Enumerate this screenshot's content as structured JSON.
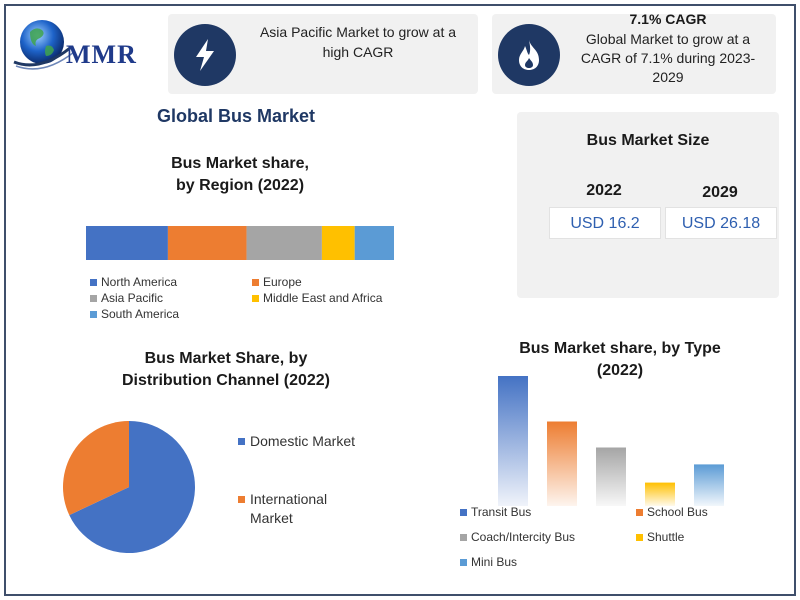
{
  "logo": {
    "text": "MMR"
  },
  "highlights": [
    {
      "icon": "lightning-icon",
      "text": "Asia Pacific Market to grow at a high CAGR"
    },
    {
      "icon": "flame-icon",
      "title": "7.1% CAGR",
      "text": "Global Market to grow at a CAGR of 7.1% during 2023-2029"
    }
  ],
  "main_title": "Global Bus Market",
  "market_size": {
    "title": "Bus Market Size",
    "items": [
      {
        "year": "2022",
        "value": "USD 16.2"
      },
      {
        "year": "2029",
        "value": "USD 26.18"
      }
    ]
  },
  "region_chart_title_line1": "Bus Market share,",
  "region_chart_title_line2": "by Region (2022)",
  "channel_chart_title_line1": "Bus Market Share, by",
  "channel_chart_title_line2": "Distribution Channel (2022)",
  "type_chart_title_line1": "Bus Market share, by Type",
  "type_chart_title_line2": "(2022)",
  "colors": {
    "blue": "#4472c4",
    "orange": "#ed7d31",
    "gray": "#a5a5a5",
    "yellow": "#ffc000",
    "lightblue": "#5b9bd5",
    "navy": "#1f3864"
  },
  "chart_data": [
    {
      "type": "bar",
      "subtype": "stacked-horizontal-100",
      "title": "Bus Market share, by Region (2022)",
      "series": [
        {
          "name": "North America",
          "values": [
            25
          ],
          "color": "#4472c4"
        },
        {
          "name": "Europe",
          "values": [
            24
          ],
          "color": "#ed7d31"
        },
        {
          "name": "Asia Pacific",
          "values": [
            23
          ],
          "color": "#a5a5a5"
        },
        {
          "name": "Middle East and Africa",
          "values": [
            10
          ],
          "color": "#ffc000"
        },
        {
          "name": "South America",
          "values": [
            12
          ],
          "color": "#5b9bd5"
        }
      ],
      "legend": "bottom"
    },
    {
      "type": "pie",
      "title": "Bus Market Share, by Distribution Channel (2022)",
      "labels": [
        "Domestic Market",
        "International Market"
      ],
      "values": [
        68,
        32
      ],
      "colors": [
        "#4472c4",
        "#ed7d31"
      ],
      "legend": "right"
    },
    {
      "type": "bar",
      "title": "Bus Market share, by Type (2022)",
      "categories": [
        "Transit Bus",
        "School Bus",
        "Coach/Intercity Bus",
        "Shuttle",
        "Mini Bus"
      ],
      "values": [
        100,
        65,
        45,
        18,
        32
      ],
      "colors": [
        "#4472c4",
        "#ed7d31",
        "#a5a5a5",
        "#ffc000",
        "#5b9bd5"
      ],
      "ylim": [
        0,
        100
      ],
      "legend": "bottom"
    }
  ]
}
